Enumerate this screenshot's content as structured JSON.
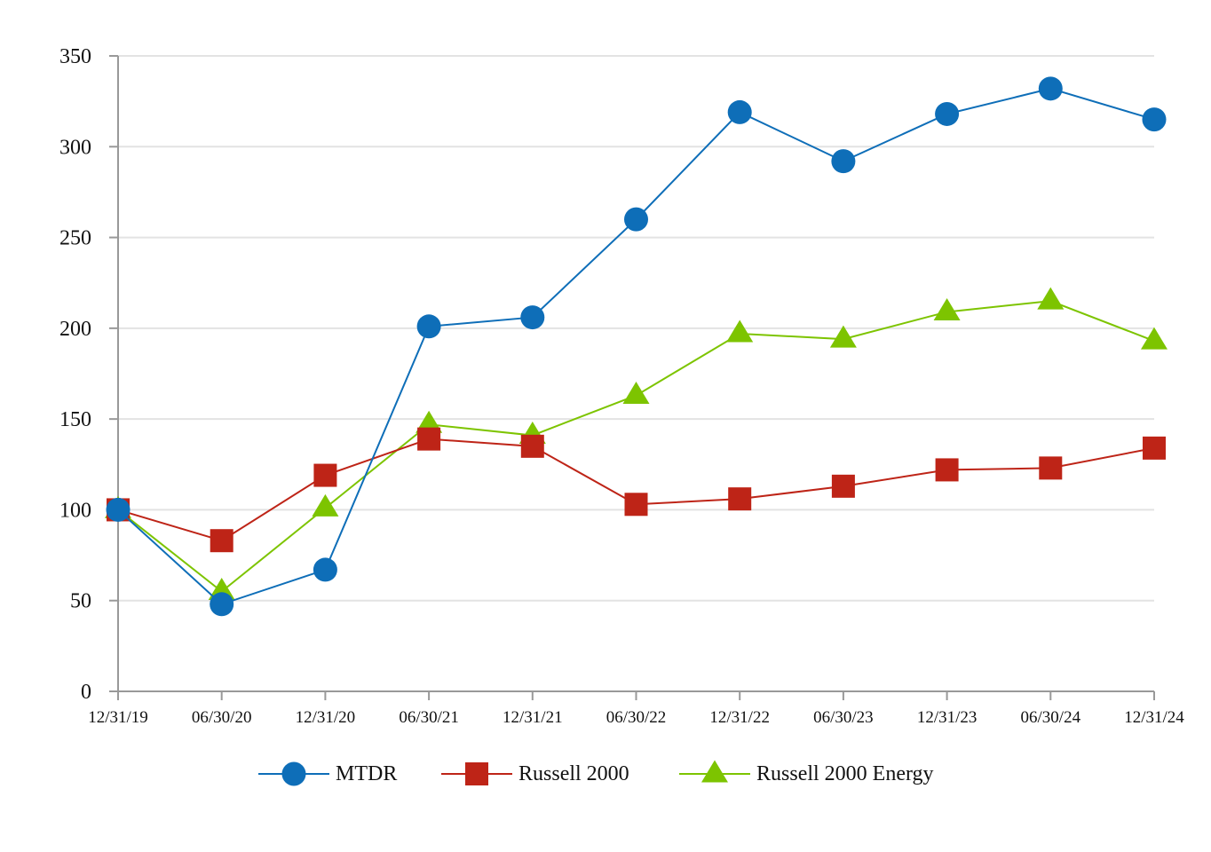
{
  "chart_data": {
    "type": "line",
    "title": "",
    "xlabel": "",
    "ylabel": "",
    "categories": [
      "12/31/19",
      "06/30/20",
      "12/31/20",
      "06/30/21",
      "12/31/21",
      "06/30/22",
      "12/31/22",
      "06/30/23",
      "12/31/23",
      "06/30/24",
      "12/31/24"
    ],
    "ylim": [
      0,
      350
    ],
    "yticks": [
      0,
      50,
      100,
      150,
      200,
      250,
      300,
      350
    ],
    "ytick_labels": [
      "0",
      "50",
      "100",
      "150",
      "200",
      "250",
      "300",
      "350"
    ],
    "grid": true,
    "legend_position": "bottom-center",
    "series": [
      {
        "name": "MTDR",
        "marker": "circle",
        "color": "#0E6EB8",
        "values": [
          100,
          48,
          67,
          201,
          206,
          260,
          319,
          292,
          318,
          332,
          315
        ]
      },
      {
        "name": "Russell 2000",
        "marker": "square",
        "color": "#BE2417",
        "values": [
          100,
          83,
          119,
          139,
          135,
          103,
          106,
          113,
          122,
          123,
          134
        ]
      },
      {
        "name": "Russell 2000 Energy",
        "marker": "triangle",
        "color": "#7DC400",
        "values": [
          100,
          55,
          101,
          147,
          141,
          163,
          197,
          194,
          209,
          215,
          193
        ]
      }
    ]
  }
}
